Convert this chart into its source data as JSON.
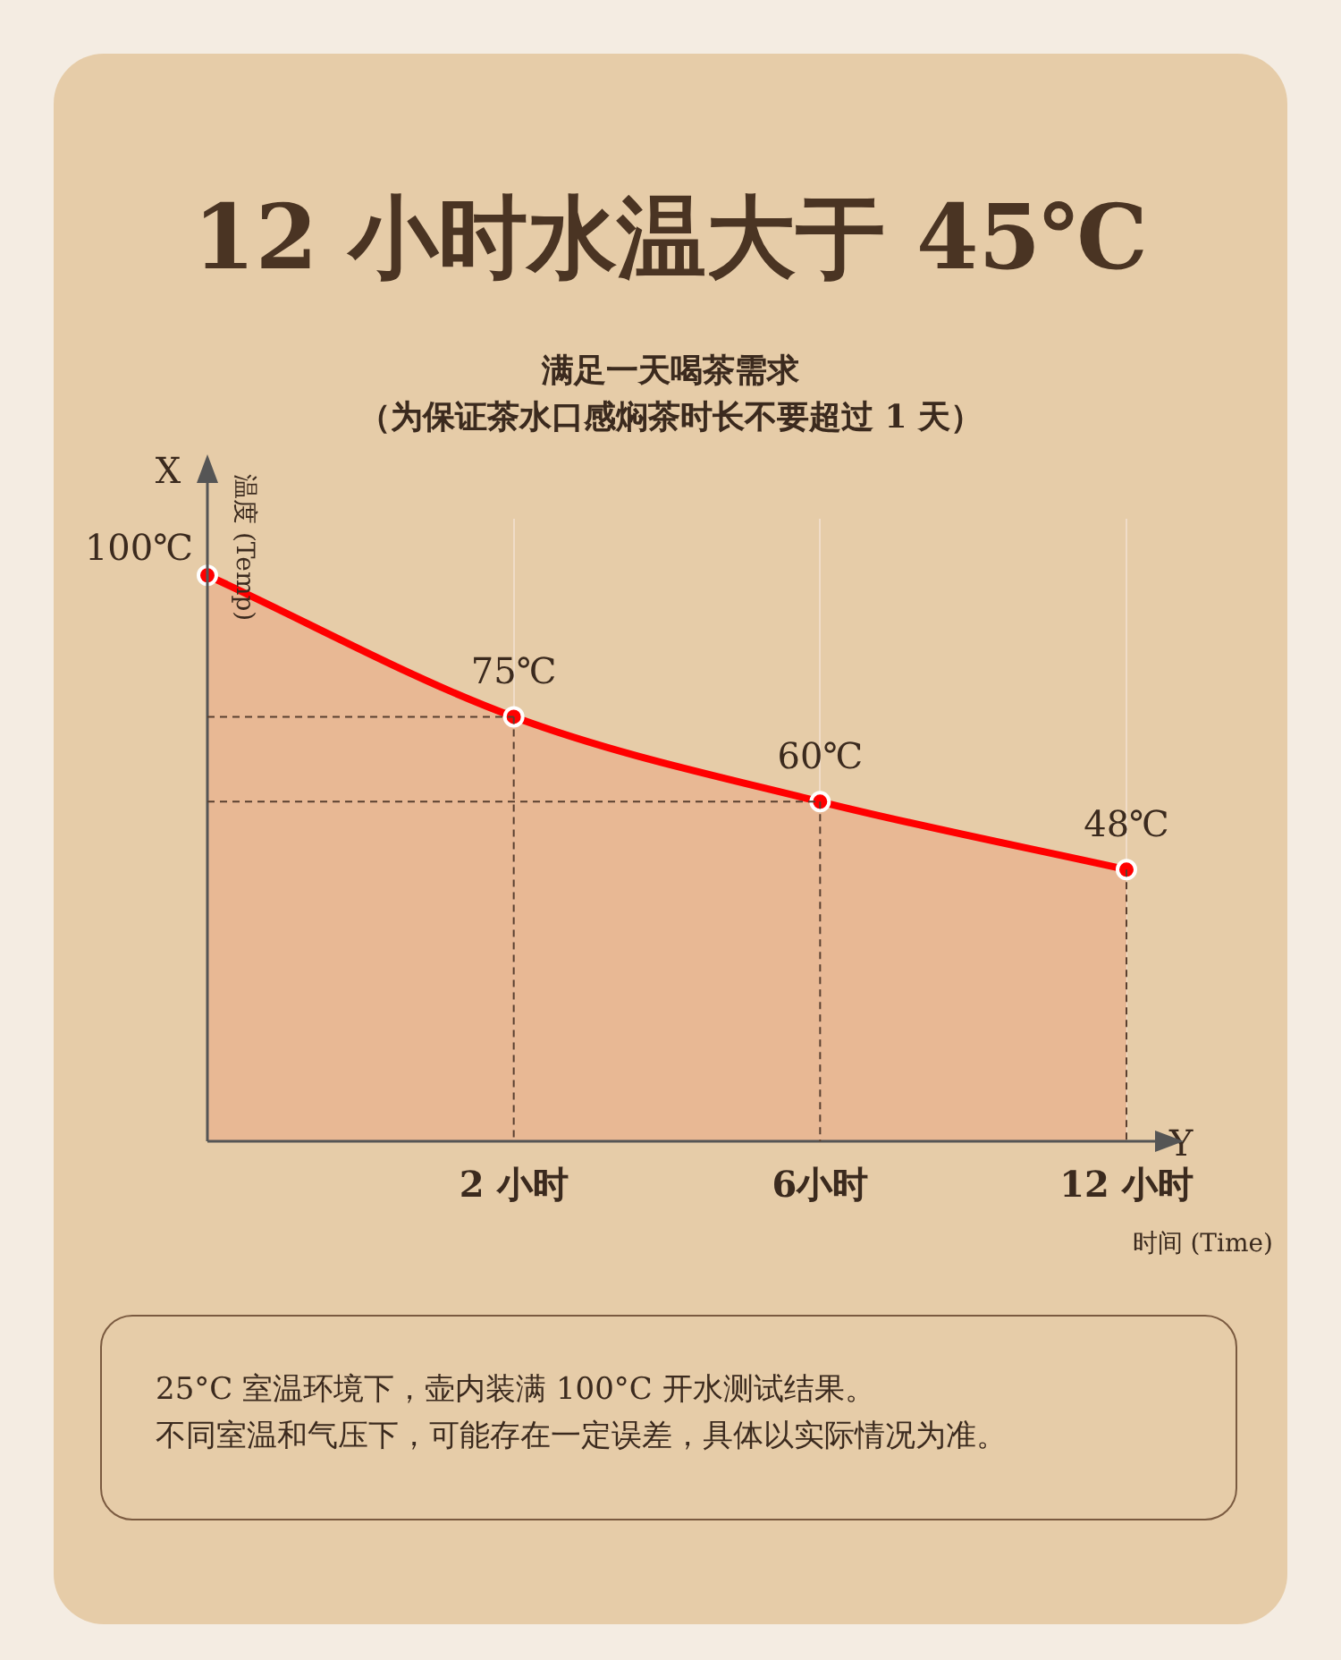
{
  "chart_data": {
    "type": "area",
    "title": "12 小时水温大于 45℃",
    "subtitle": "满足一天喝茶需求",
    "xlabel": "时间 (Time)",
    "ylabel": "温度 (Temp)",
    "categories": [
      null,
      "2 小时",
      "6小时",
      "12 小时"
    ],
    "series": [
      {
        "color": "#ff0000",
        "values": [
          100,
          75,
          60,
          48
        ],
        "value_labels": [
          "100℃",
          "75℃",
          "60℃",
          "48℃"
        ]
      }
    ],
    "ylim": [
      0,
      110
    ],
    "tick_labels": "x",
    "grid": "x",
    "legend": false,
    "marker": "circle",
    "annotations": [
      "X",
      "Y",
      "（为保证茶水口感焖茶时长不要超过 1 天）",
      "25°C 室温环境下，壶内装满 100°C 开水测试结果。",
      "不同室温和气压下，可能存在一定误差，具体以实际情况为准。"
    ]
  }
}
